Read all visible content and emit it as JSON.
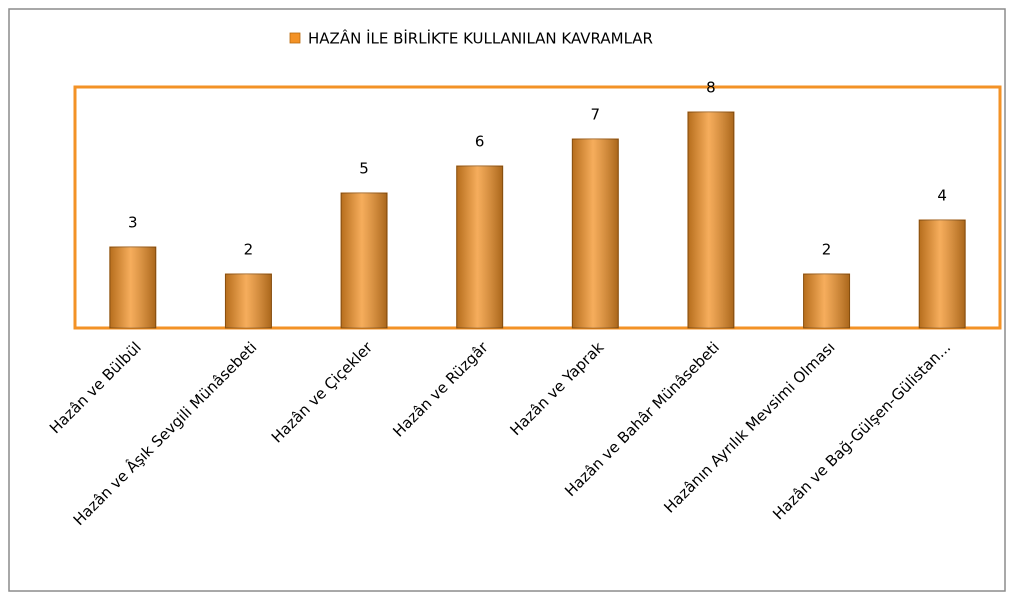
{
  "chart_data": {
    "type": "bar",
    "categories": [
      "Hazân ve Bülbül",
      "Hazân ve Âşık Sevgili Münâsebeti",
      "Hazân ve Çiçekler",
      "Hazân ve Rüzgâr",
      "Hazân ve Yaprak",
      "Hazân ve Bahâr Münâsebeti",
      "Hazânın Ayrılık Mevsimi Olması",
      "Hazân ve Bağ-Gülşen-Gülistan..."
    ],
    "series": [
      {
        "name": "HAZÂN İLE BİRLİKTE KULLANILAN KAVRAMLAR",
        "color": "#f39226",
        "values": [
          3,
          2,
          5,
          6,
          7,
          8,
          2,
          4
        ]
      }
    ],
    "ylim": [
      0,
      9
    ],
    "legend": "top"
  }
}
